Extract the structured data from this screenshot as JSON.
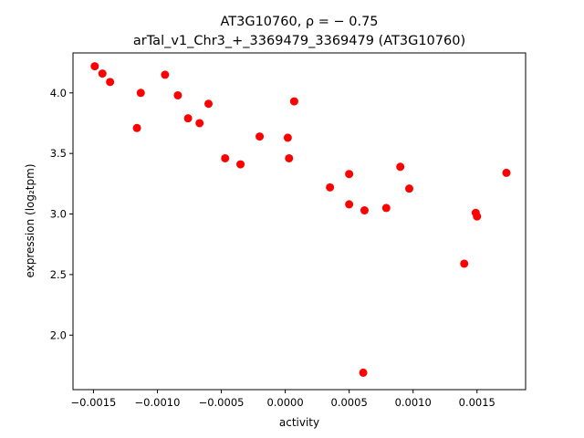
{
  "chart_data": {
    "type": "scatter",
    "title_line1": "AT3G10760, ρ = − 0.75",
    "title_line2": "arTal_v1_Chr3_+_3369479_3369479 (AT3G10760)",
    "xlabel": "activity",
    "ylabel": "expression (log₂tpm)",
    "xlim": [
      -0.00166,
      0.00188
    ],
    "ylim": [
      1.55,
      4.33
    ],
    "xticks": [
      -0.0015,
      -0.001,
      -0.0005,
      0.0,
      0.0005,
      0.001,
      0.0015
    ],
    "xtick_labels": [
      "−0.0015",
      "−0.0010",
      "−0.0005",
      "0.0000",
      "0.0005",
      "0.0010",
      "0.0015"
    ],
    "yticks": [
      2.0,
      2.5,
      3.0,
      3.5,
      4.0
    ],
    "ytick_labels": [
      "2.0",
      "2.5",
      "3.0",
      "3.5",
      "4.0"
    ],
    "marker_color": "#ff0000",
    "grid": false,
    "points": [
      {
        "x": -0.00149,
        "y": 4.22
      },
      {
        "x": -0.00143,
        "y": 4.16
      },
      {
        "x": -0.00137,
        "y": 4.09
      },
      {
        "x": -0.00116,
        "y": 3.71
      },
      {
        "x": -0.00113,
        "y": 4.0
      },
      {
        "x": -0.00094,
        "y": 4.15
      },
      {
        "x": -0.00084,
        "y": 3.98
      },
      {
        "x": -0.00076,
        "y": 3.79
      },
      {
        "x": -0.00067,
        "y": 3.75
      },
      {
        "x": -0.0006,
        "y": 3.91
      },
      {
        "x": -0.00047,
        "y": 3.46
      },
      {
        "x": -0.00035,
        "y": 3.41
      },
      {
        "x": -0.0002,
        "y": 3.64
      },
      {
        "x": 2e-05,
        "y": 3.63
      },
      {
        "x": 3e-05,
        "y": 3.46
      },
      {
        "x": 7e-05,
        "y": 3.93
      },
      {
        "x": 0.00035,
        "y": 3.22
      },
      {
        "x": 0.0005,
        "y": 3.33
      },
      {
        "x": 0.0005,
        "y": 3.08
      },
      {
        "x": 0.00061,
        "y": 1.69
      },
      {
        "x": 0.00062,
        "y": 3.03
      },
      {
        "x": 0.00079,
        "y": 3.05
      },
      {
        "x": 0.0009,
        "y": 3.39
      },
      {
        "x": 0.00097,
        "y": 3.21
      },
      {
        "x": 0.0014,
        "y": 2.59
      },
      {
        "x": 0.00149,
        "y": 3.01
      },
      {
        "x": 0.0015,
        "y": 2.98
      },
      {
        "x": 0.00173,
        "y": 3.34
      }
    ]
  }
}
